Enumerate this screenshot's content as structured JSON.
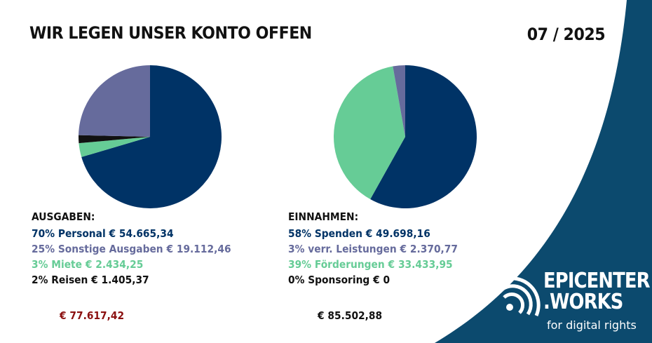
{
  "colors": {
    "navy": "#003366",
    "slate": "#666b9c",
    "green": "#66cc96",
    "black": "#111111",
    "red": "#8b1010",
    "background_shape": "#0c4a6e"
  },
  "header": {
    "title": "WIR LEGEN UNSER KONTO OFFEN",
    "date": "07 / 2025"
  },
  "chart_data": [
    {
      "type": "pie",
      "title": "AUSGABEN:",
      "slices": [
        {
          "label": "70% Personal € 54.665,34",
          "name": "Personal",
          "percent": 70,
          "value": 54665.34,
          "color": "#003366"
        },
        {
          "label": "25% Sonstige Ausgaben € 19.112,46",
          "name": "Sonstige Ausgaben",
          "percent": 25,
          "value": 19112.46,
          "color": "#666b9c"
        },
        {
          "label": "3% Miete € 2.434,25",
          "name": "Miete",
          "percent": 3,
          "value": 2434.25,
          "color": "#66cc96"
        },
        {
          "label": "2% Reisen € 1.405,37",
          "name": "Reisen",
          "percent": 2,
          "value": 1405.37,
          "color": "#111111"
        }
      ],
      "total_label": "€ 77.617,42",
      "total_color": "#8b1010"
    },
    {
      "type": "pie",
      "title": "EINNAHMEN:",
      "slices": [
        {
          "label": "58% Spenden € 49.698,16",
          "name": "Spenden",
          "percent": 58,
          "value": 49698.16,
          "color": "#003366"
        },
        {
          "label": "3% verr. Leistungen € 2.370,77",
          "name": "verr. Leistungen",
          "percent": 3,
          "value": 2370.77,
          "color": "#666b9c"
        },
        {
          "label": "39% Förderungen € 33.433,95",
          "name": "Förderungen",
          "percent": 39,
          "value": 33433.95,
          "color": "#66cc96"
        },
        {
          "label": "0% Sponsoring € 0",
          "name": "Sponsoring",
          "percent": 0,
          "value": 0,
          "color": "#111111"
        }
      ],
      "total_label": "€ 85.502,88",
      "total_color": "#111111"
    }
  ],
  "logo": {
    "line1": "EPICENTER",
    "line2": ".WORKS",
    "tagline": "for digital rights",
    "icon": "signal-broadcast-icon"
  }
}
